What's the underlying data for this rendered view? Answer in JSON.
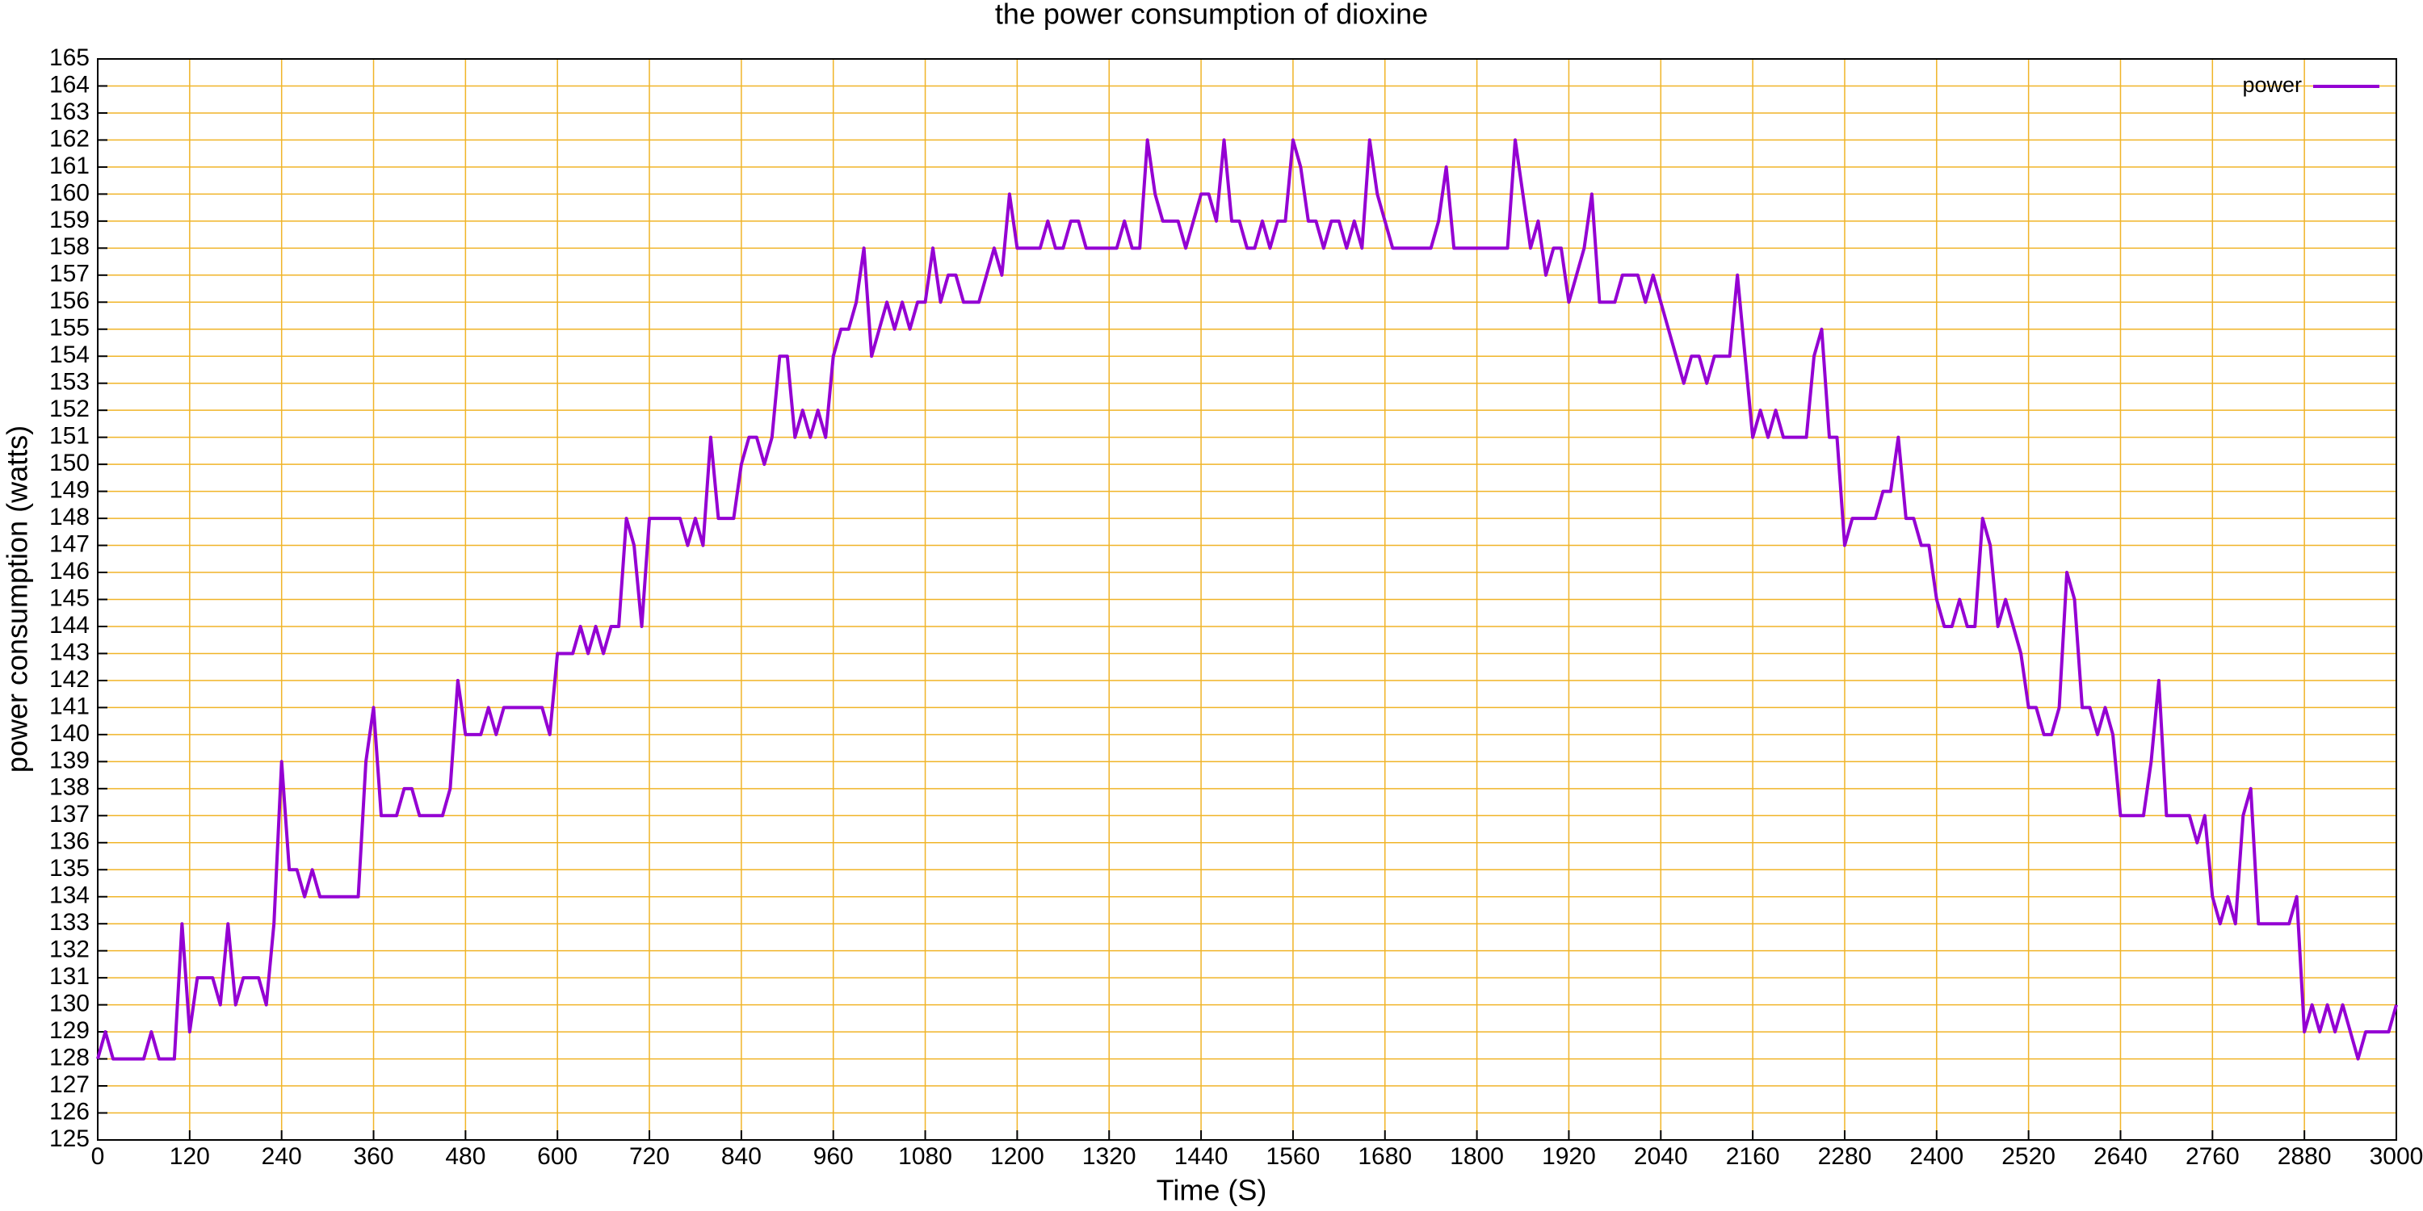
{
  "chart_data": {
    "type": "line",
    "title": "the power consumption of dioxine",
    "x_label": "Time (S)",
    "y_label": "power consumption (watts)",
    "xlim": [
      0,
      3000
    ],
    "xticks": [
      0,
      120,
      240,
      360,
      480,
      600,
      720,
      840,
      960,
      1080,
      1200,
      1320,
      1440,
      1560,
      1680,
      1800,
      1920,
      2040,
      2160,
      2280,
      2400,
      2520,
      2640,
      2760,
      2880,
      3000
    ],
    "ylim": [
      125,
      165
    ],
    "yticks": [
      125,
      126,
      127,
      128,
      129,
      130,
      131,
      132,
      133,
      134,
      135,
      136,
      137,
      138,
      139,
      140,
      141,
      142,
      143,
      144,
      145,
      146,
      147,
      148,
      149,
      150,
      151,
      152,
      153,
      154,
      155,
      156,
      157,
      158,
      159,
      160,
      161,
      162,
      163,
      164,
      165
    ],
    "grid": true,
    "grid_color": "#f0b428",
    "legend": "top-right",
    "series": [
      {
        "name": "power",
        "color": "#9400d3",
        "x": [
          0,
          10,
          20,
          60,
          70,
          80,
          100,
          110,
          120,
          130,
          150,
          160,
          170,
          180,
          190,
          210,
          220,
          230,
          240,
          250,
          260,
          270,
          280,
          290,
          340,
          350,
          360,
          370,
          390,
          400,
          410,
          420,
          450,
          460,
          470,
          480,
          500,
          510,
          520,
          530,
          580,
          590,
          600,
          620,
          630,
          640,
          650,
          660,
          670,
          680,
          690,
          700,
          710,
          720,
          760,
          770,
          780,
          790,
          800,
          810,
          830,
          840,
          850,
          860,
          870,
          880,
          890,
          900,
          910,
          920,
          930,
          940,
          950,
          960,
          970,
          980,
          990,
          1000,
          1010,
          1020,
          1030,
          1040,
          1050,
          1060,
          1070,
          1080,
          1090,
          1100,
          1110,
          1120,
          1130,
          1150,
          1160,
          1170,
          1180,
          1190,
          1200,
          1230,
          1240,
          1250,
          1260,
          1270,
          1280,
          1290,
          1330,
          1340,
          1350,
          1360,
          1370,
          1380,
          1390,
          1410,
          1420,
          1430,
          1440,
          1450,
          1460,
          1470,
          1480,
          1490,
          1500,
          1510,
          1520,
          1530,
          1540,
          1550,
          1560,
          1570,
          1580,
          1590,
          1600,
          1610,
          1620,
          1630,
          1640,
          1650,
          1660,
          1670,
          1680,
          1690,
          1740,
          1750,
          1760,
          1770,
          1840,
          1850,
          1860,
          1870,
          1880,
          1890,
          1900,
          1910,
          1920,
          1930,
          1940,
          1950,
          1960,
          1980,
          1990,
          2010,
          2020,
          2030,
          2040,
          2050,
          2060,
          2070,
          2080,
          2090,
          2100,
          2110,
          2130,
          2140,
          2150,
          2160,
          2170,
          2180,
          2190,
          2200,
          2230,
          2240,
          2250,
          2260,
          2270,
          2280,
          2290,
          2320,
          2330,
          2340,
          2350,
          2360,
          2370,
          2380,
          2390,
          2400,
          2410,
          2420,
          2430,
          2440,
          2450,
          2460,
          2470,
          2480,
          2490,
          2500,
          2510,
          2520,
          2530,
          2540,
          2550,
          2560,
          2570,
          2580,
          2590,
          2600,
          2610,
          2620,
          2630,
          2640,
          2670,
          2680,
          2690,
          2700,
          2730,
          2740,
          2750,
          2760,
          2770,
          2780,
          2790,
          2800,
          2810,
          2820,
          2860,
          2870,
          2880,
          2890,
          2900,
          2910,
          2920,
          2930,
          2940,
          2950,
          2960,
          2990,
          3000
        ],
        "values": [
          128,
          129,
          128,
          128,
          129,
          128,
          128,
          133,
          129,
          131,
          131,
          130,
          133,
          130,
          131,
          131,
          130,
          133,
          139,
          135,
          135,
          134,
          135,
          134,
          134,
          139,
          141,
          137,
          137,
          138,
          138,
          137,
          137,
          138,
          142,
          140,
          140,
          141,
          140,
          141,
          141,
          140,
          143,
          143,
          144,
          143,
          144,
          143,
          144,
          144,
          148,
          147,
          144,
          148,
          148,
          147,
          148,
          147,
          151,
          148,
          148,
          150,
          151,
          151,
          150,
          151,
          154,
          154,
          151,
          152,
          151,
          152,
          151,
          154,
          155,
          155,
          156,
          158,
          154,
          155,
          156,
          155,
          156,
          155,
          156,
          156,
          158,
          156,
          157,
          157,
          156,
          156,
          157,
          158,
          157,
          160,
          158,
          158,
          159,
          158,
          158,
          159,
          159,
          158,
          158,
          159,
          158,
          158,
          162,
          160,
          159,
          159,
          158,
          159,
          160,
          160,
          159,
          162,
          159,
          159,
          158,
          158,
          159,
          158,
          159,
          159,
          162,
          161,
          159,
          159,
          158,
          159,
          159,
          158,
          159,
          158,
          162,
          160,
          159,
          158,
          158,
          159,
          161,
          158,
          158,
          162,
          160,
          158,
          159,
          157,
          158,
          158,
          156,
          157,
          158,
          160,
          156,
          156,
          157,
          157,
          156,
          157,
          156,
          155,
          154,
          153,
          154,
          154,
          153,
          154,
          154,
          157,
          154,
          151,
          152,
          151,
          152,
          151,
          151,
          154,
          155,
          151,
          151,
          147,
          148,
          148,
          149,
          149,
          151,
          148,
          148,
          147,
          147,
          145,
          144,
          144,
          145,
          144,
          144,
          148,
          147,
          144,
          145,
          144,
          143,
          141,
          141,
          140,
          140,
          141,
          146,
          145,
          141,
          141,
          140,
          141,
          140,
          137,
          137,
          139,
          142,
          137,
          137,
          136,
          137,
          134,
          133,
          134,
          133,
          137,
          138,
          133,
          133,
          134,
          129,
          130,
          129,
          130,
          129,
          130,
          129,
          128,
          129,
          129,
          130
        ]
      }
    ]
  }
}
